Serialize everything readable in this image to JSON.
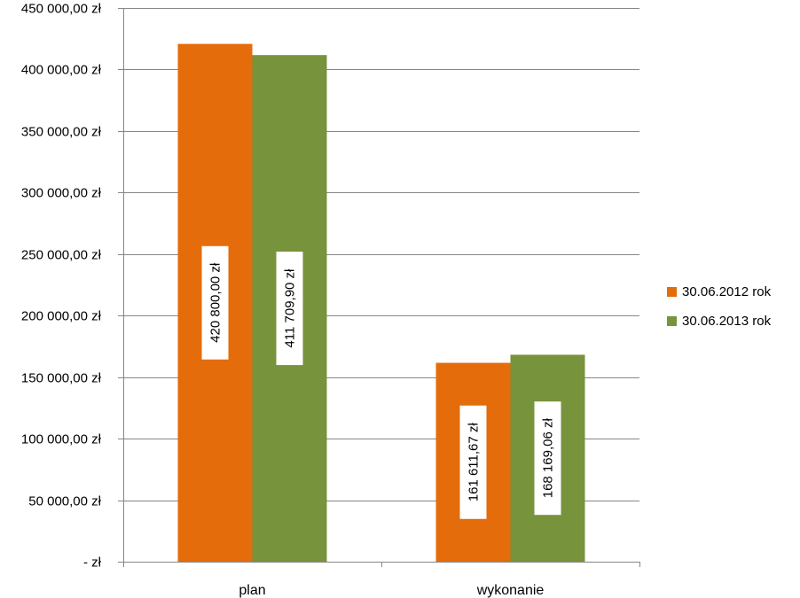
{
  "chart_data": {
    "type": "bar",
    "categories": [
      "plan",
      "wykonanie"
    ],
    "series": [
      {
        "name": "30.06.2012 rok",
        "color": "#E46C0A",
        "values": [
          420800.0,
          161611.67
        ],
        "labels": [
          "420 800,00 zł",
          "161 611,67 zł"
        ]
      },
      {
        "name": "30.06.2013 rok",
        "color": "#77933C",
        "values": [
          411709.9,
          168169.06
        ],
        "labels": [
          "411 709,90 zł",
          "168 169,06 zł"
        ]
      }
    ],
    "ylim": [
      0,
      450000
    ],
    "yticks": [
      0,
      50000,
      100000,
      150000,
      200000,
      250000,
      300000,
      350000,
      400000,
      450000
    ],
    "ytick_labels": [
      "-   zł",
      "50 000,00 zł",
      "100 000,00 zł",
      "150 000,00 zł",
      "200 000,00 zł",
      "250 000,00 zł",
      "300 000,00 zł",
      "350 000,00 zł",
      "400 000,00 zł",
      "450 000,00 zł"
    ],
    "grid": true,
    "legend_position": "right"
  }
}
